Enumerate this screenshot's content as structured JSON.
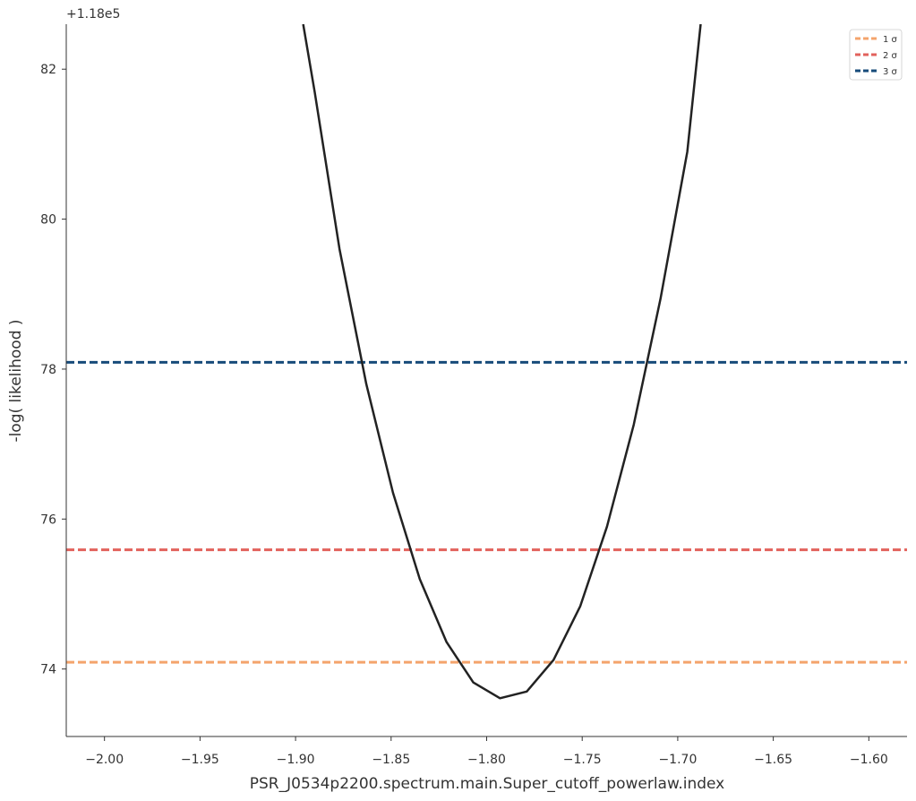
{
  "chart_data": {
    "type": "line",
    "xlabel": "PSR_J0534p2200.spectrum.main.Super_cutoff_powerlaw.index",
    "ylabel": "-log( likelihood )",
    "y_offset_label": "+1.18e5",
    "xlim": [
      -2.02,
      -1.58
    ],
    "ylim": [
      73.1,
      82.6
    ],
    "xticks": [
      -2.0,
      -1.95,
      -1.9,
      -1.85,
      -1.8,
      -1.75,
      -1.7,
      -1.65,
      -1.6
    ],
    "xtick_labels": [
      "−2.00",
      "−1.95",
      "−1.90",
      "−1.85",
      "−1.80",
      "−1.75",
      "−1.70",
      "−1.65",
      "−1.60"
    ],
    "yticks": [
      74,
      76,
      78,
      80,
      82
    ],
    "ytick_labels": [
      "74",
      "76",
      "78",
      "80",
      "82"
    ],
    "grid": false,
    "legend_position": "top-right",
    "profile_line": {
      "color": "#222222",
      "x": [
        -1.896,
        -1.89,
        -1.877,
        -1.863,
        -1.849,
        -1.835,
        -1.821,
        -1.807,
        -1.793,
        -1.779,
        -1.765,
        -1.751,
        -1.737,
        -1.723,
        -1.709,
        -1.695,
        -1.688
      ],
      "y": [
        82.6,
        81.7,
        79.6,
        77.8,
        76.35,
        75.2,
        74.36,
        73.82,
        73.61,
        73.7,
        74.12,
        74.84,
        75.9,
        77.26,
        78.94,
        80.9,
        82.6
      ]
    },
    "sigma_lines": [
      {
        "label": "1 σ",
        "y": 74.09,
        "color": "#f4a46c"
      },
      {
        "label": "2 σ",
        "y": 75.59,
        "color": "#e2625c"
      },
      {
        "label": "3 σ",
        "y": 78.09,
        "color": "#174b7a"
      }
    ]
  }
}
